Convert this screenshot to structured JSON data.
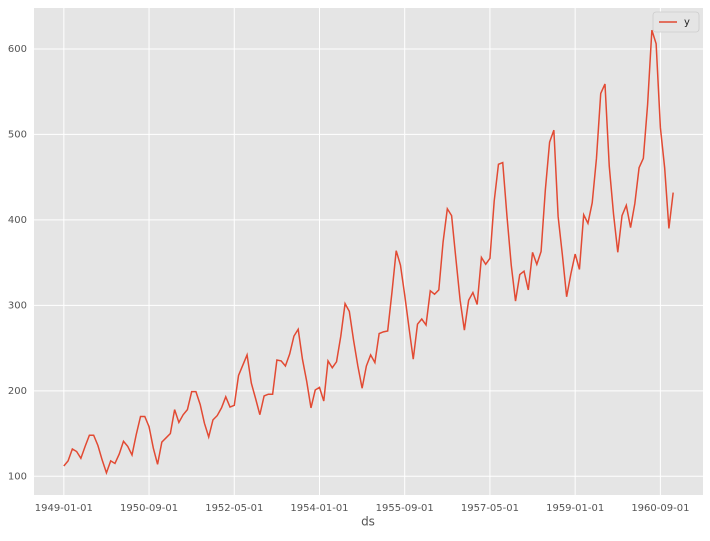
{
  "chart_data": {
    "type": "line",
    "x": [
      "1949-01-01",
      "1949-02-01",
      "1949-03-01",
      "1949-04-01",
      "1949-05-01",
      "1949-06-01",
      "1949-07-01",
      "1949-08-01",
      "1949-09-01",
      "1949-10-01",
      "1949-11-01",
      "1949-12-01",
      "1950-01-01",
      "1950-02-01",
      "1950-03-01",
      "1950-04-01",
      "1950-05-01",
      "1950-06-01",
      "1950-07-01",
      "1950-08-01",
      "1950-09-01",
      "1950-10-01",
      "1950-11-01",
      "1950-12-01",
      "1951-01-01",
      "1951-02-01",
      "1951-03-01",
      "1951-04-01",
      "1951-05-01",
      "1951-06-01",
      "1951-07-01",
      "1951-08-01",
      "1951-09-01",
      "1951-10-01",
      "1951-11-01",
      "1951-12-01",
      "1952-01-01",
      "1952-02-01",
      "1952-03-01",
      "1952-04-01",
      "1952-05-01",
      "1952-06-01",
      "1952-07-01",
      "1952-08-01",
      "1952-09-01",
      "1952-10-01",
      "1952-11-01",
      "1952-12-01",
      "1953-01-01",
      "1953-02-01",
      "1953-03-01",
      "1953-04-01",
      "1953-05-01",
      "1953-06-01",
      "1953-07-01",
      "1953-08-01",
      "1953-09-01",
      "1953-10-01",
      "1953-11-01",
      "1953-12-01",
      "1954-01-01",
      "1954-02-01",
      "1954-03-01",
      "1954-04-01",
      "1954-05-01",
      "1954-06-01",
      "1954-07-01",
      "1954-08-01",
      "1954-09-01",
      "1954-10-01",
      "1954-11-01",
      "1954-12-01",
      "1955-01-01",
      "1955-02-01",
      "1955-03-01",
      "1955-04-01",
      "1955-05-01",
      "1955-06-01",
      "1955-07-01",
      "1955-08-01",
      "1955-09-01",
      "1955-10-01",
      "1955-11-01",
      "1955-12-01",
      "1956-01-01",
      "1956-02-01",
      "1956-03-01",
      "1956-04-01",
      "1956-05-01",
      "1956-06-01",
      "1956-07-01",
      "1956-08-01",
      "1956-09-01",
      "1956-10-01",
      "1956-11-01",
      "1956-12-01",
      "1957-01-01",
      "1957-02-01",
      "1957-03-01",
      "1957-04-01",
      "1957-05-01",
      "1957-06-01",
      "1957-07-01",
      "1957-08-01",
      "1957-09-01",
      "1957-10-01",
      "1957-11-01",
      "1957-12-01",
      "1958-01-01",
      "1958-02-01",
      "1958-03-01",
      "1958-04-01",
      "1958-05-01",
      "1958-06-01",
      "1958-07-01",
      "1958-08-01",
      "1958-09-01",
      "1958-10-01",
      "1958-11-01",
      "1958-12-01",
      "1959-01-01",
      "1959-02-01",
      "1959-03-01",
      "1959-04-01",
      "1959-05-01",
      "1959-06-01",
      "1959-07-01",
      "1959-08-01",
      "1959-09-01",
      "1959-10-01",
      "1959-11-01",
      "1959-12-01",
      "1960-01-01",
      "1960-02-01",
      "1960-03-01",
      "1960-04-01",
      "1960-05-01",
      "1960-06-01",
      "1960-07-01",
      "1960-08-01",
      "1960-09-01",
      "1960-10-01",
      "1960-11-01",
      "1960-12-01"
    ],
    "series": [
      {
        "name": "y",
        "color": "#e24a33",
        "values": [
          112,
          118,
          132,
          129,
          121,
          135,
          148,
          148,
          136,
          119,
          104,
          118,
          115,
          126,
          141,
          135,
          125,
          149,
          170,
          170,
          158,
          133,
          114,
          140,
          145,
          150,
          178,
          163,
          172,
          178,
          199,
          199,
          184,
          162,
          146,
          166,
          171,
          180,
          193,
          181,
          183,
          218,
          230,
          242,
          209,
          191,
          172,
          194,
          196,
          196,
          236,
          235,
          229,
          243,
          264,
          272,
          237,
          211,
          180,
          201,
          204,
          188,
          235,
          227,
          234,
          264,
          302,
          293,
          259,
          229,
          203,
          229,
          242,
          233,
          267,
          269,
          270,
          315,
          364,
          347,
          312,
          274,
          237,
          278,
          284,
          277,
          317,
          313,
          318,
          374,
          413,
          405,
          355,
          306,
          271,
          306,
          315,
          301,
          356,
          348,
          355,
          422,
          465,
          467,
          404,
          347,
          305,
          336,
          340,
          318,
          362,
          348,
          363,
          435,
          491,
          505,
          404,
          359,
          310,
          337,
          360,
          342,
          406,
          396,
          420,
          472,
          548,
          559,
          463,
          407,
          362,
          405,
          417,
          391,
          419,
          461,
          472,
          535,
          622,
          606,
          508,
          461,
          390,
          432
        ]
      }
    ],
    "xlabel": "ds",
    "xlim": [
      "1948-06-01",
      "1961-07-01"
    ],
    "xticks": [
      "1949-01-01",
      "1950-09-01",
      "1952-05-01",
      "1954-01-01",
      "1955-09-01",
      "1957-05-01",
      "1959-01-01",
      "1960-09-01"
    ],
    "ylim": [
      78.1,
      647.9
    ],
    "yticks": [
      100,
      200,
      300,
      400,
      500,
      600
    ],
    "grid": true,
    "legend": "upper right"
  }
}
